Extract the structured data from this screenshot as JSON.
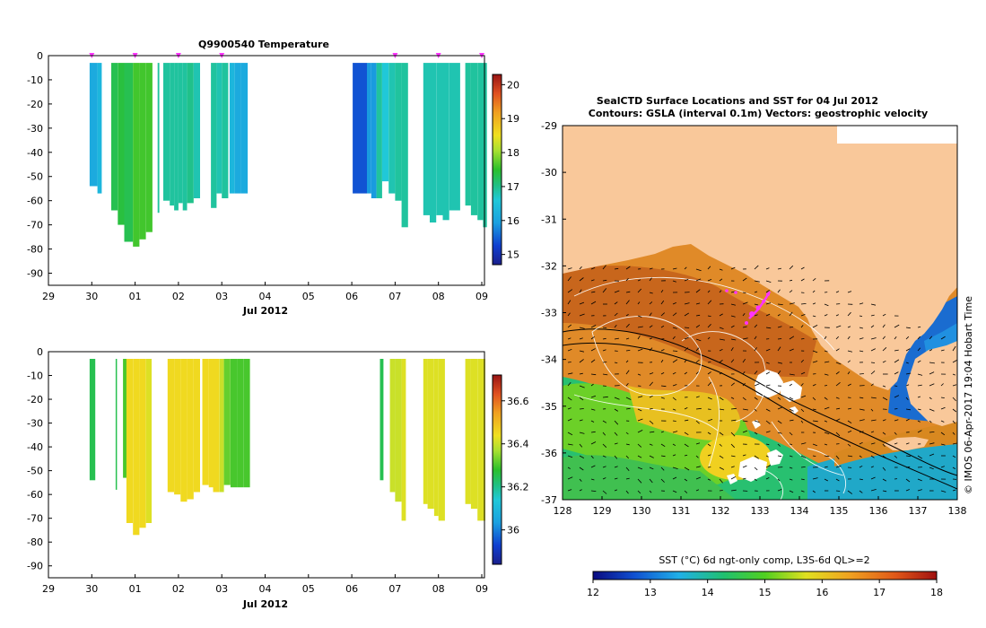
{
  "chart_data": [
    {
      "type": "heatmap",
      "title": "Q9900540  Temperature",
      "xlabel": "Jul 2012",
      "ylabel": "",
      "x_ticks": [
        "29",
        "30",
        "01",
        "02",
        "03",
        "04",
        "05",
        "06",
        "07",
        "08",
        "09"
      ],
      "y_ticks": [
        "0",
        "-10",
        "-20",
        "-30",
        "-40",
        "-50",
        "-60",
        "-70",
        "-80",
        "-90"
      ],
      "ylim": [
        -95,
        0
      ],
      "colorbar": {
        "min": 14.7,
        "max": 20.3,
        "ticks": [
          "15",
          "16",
          "17",
          "18",
          "19",
          "20"
        ]
      },
      "profiles": [
        {
          "start": 29.95,
          "end": 30.13,
          "depth": 54,
          "value": 16.1
        },
        {
          "start": 30.13,
          "end": 30.23,
          "depth": 57,
          "value": 16.3
        },
        {
          "start": 30.45,
          "end": 30.6,
          "depth": 64,
          "value": 17.3
        },
        {
          "start": 30.6,
          "end": 30.75,
          "depth": 70,
          "value": 17.4
        },
        {
          "start": 30.75,
          "end": 30.95,
          "depth": 77,
          "value": 17.3
        },
        {
          "start": 30.95,
          "end": 31.1,
          "depth": 79,
          "value": 17.6
        },
        {
          "start": 31.1,
          "end": 31.25,
          "depth": 76,
          "value": 17.6
        },
        {
          "start": 31.25,
          "end": 31.4,
          "depth": 73,
          "value": 17.6
        },
        {
          "start": 31.52,
          "end": 31.56,
          "depth": 65,
          "value": 16.9
        },
        {
          "start": 31.65,
          "end": 31.8,
          "depth": 60,
          "value": 16.9
        },
        {
          "start": 31.8,
          "end": 31.9,
          "depth": 62,
          "value": 16.9
        },
        {
          "start": 31.9,
          "end": 32.0,
          "depth": 64,
          "value": 16.9
        },
        {
          "start": 32.0,
          "end": 32.1,
          "depth": 61,
          "value": 16.9
        },
        {
          "start": 32.1,
          "end": 32.2,
          "depth": 64,
          "value": 16.9
        },
        {
          "start": 32.2,
          "end": 32.35,
          "depth": 61,
          "value": 17.0
        },
        {
          "start": 32.35,
          "end": 32.5,
          "depth": 59,
          "value": 16.8
        },
        {
          "start": 32.75,
          "end": 32.88,
          "depth": 63,
          "value": 16.9
        },
        {
          "start": 32.88,
          "end": 33.0,
          "depth": 57,
          "value": 16.8
        },
        {
          "start": 33.0,
          "end": 33.15,
          "depth": 59,
          "value": 16.9
        },
        {
          "start": 33.18,
          "end": 33.3,
          "depth": 57,
          "value": 16.3
        },
        {
          "start": 33.3,
          "end": 33.45,
          "depth": 57,
          "value": 16.1
        },
        {
          "start": 33.45,
          "end": 33.6,
          "depth": 57,
          "value": 16.1
        },
        {
          "start": 36.02,
          "end": 36.35,
          "depth": 57,
          "value": 15.4
        },
        {
          "start": 36.35,
          "end": 36.45,
          "depth": 57,
          "value": 15.9
        },
        {
          "start": 36.45,
          "end": 36.57,
          "depth": 59,
          "value": 15.9
        },
        {
          "start": 36.57,
          "end": 36.7,
          "depth": 59,
          "value": 16.9
        },
        {
          "start": 36.7,
          "end": 36.85,
          "depth": 52,
          "value": 16.6
        },
        {
          "start": 36.85,
          "end": 37.0,
          "depth": 57,
          "value": 16.8
        },
        {
          "start": 37.0,
          "end": 37.15,
          "depth": 60,
          "value": 16.9
        },
        {
          "start": 37.15,
          "end": 37.3,
          "depth": 71,
          "value": 16.9
        },
        {
          "start": 37.65,
          "end": 37.8,
          "depth": 66,
          "value": 16.8
        },
        {
          "start": 37.8,
          "end": 37.95,
          "depth": 69,
          "value": 16.8
        },
        {
          "start": 37.95,
          "end": 38.1,
          "depth": 66,
          "value": 16.8
        },
        {
          "start": 38.1,
          "end": 38.25,
          "depth": 68,
          "value": 16.8
        },
        {
          "start": 38.25,
          "end": 38.5,
          "depth": 64,
          "value": 16.8
        },
        {
          "start": 38.62,
          "end": 38.75,
          "depth": 62,
          "value": 16.9
        },
        {
          "start": 38.75,
          "end": 38.9,
          "depth": 66,
          "value": 16.9
        },
        {
          "start": 38.9,
          "end": 39.03,
          "depth": 68,
          "value": 16.9
        },
        {
          "start": 39.03,
          "end": 39.12,
          "depth": 71,
          "value": 16.9
        }
      ],
      "markers": [
        30.0,
        31.0,
        32.0,
        33.0,
        37.0,
        38.0,
        39.0
      ]
    },
    {
      "type": "heatmap",
      "title": "",
      "xlabel": "Jul 2012",
      "ylabel": "",
      "x_ticks": [
        "29",
        "30",
        "01",
        "02",
        "03",
        "04",
        "05",
        "06",
        "07",
        "08",
        "09"
      ],
      "y_ticks": [
        "0",
        "-10",
        "-20",
        "-30",
        "-40",
        "-50",
        "-60",
        "-70",
        "-80",
        "-90"
      ],
      "ylim": [
        -95,
        0
      ],
      "colorbar": {
        "min": 35.84,
        "max": 36.72,
        "ticks": [
          "36",
          "36.2",
          "36.4",
          "36.6"
        ]
      },
      "profiles": [
        {
          "start": 29.95,
          "end": 30.08,
          "depth": 54,
          "value": 36.25
        },
        {
          "start": 30.55,
          "end": 30.58,
          "depth": 58,
          "value": 36.25
        },
        {
          "start": 30.72,
          "end": 30.8,
          "depth": 53,
          "value": 36.3
        },
        {
          "start": 30.8,
          "end": 30.95,
          "depth": 72,
          "value": 36.45
        },
        {
          "start": 30.95,
          "end": 31.1,
          "depth": 77,
          "value": 36.45
        },
        {
          "start": 31.1,
          "end": 31.25,
          "depth": 74,
          "value": 36.45
        },
        {
          "start": 31.25,
          "end": 31.38,
          "depth": 72,
          "value": 36.42
        },
        {
          "start": 31.75,
          "end": 31.9,
          "depth": 59,
          "value": 36.45
        },
        {
          "start": 31.9,
          "end": 32.05,
          "depth": 60,
          "value": 36.45
        },
        {
          "start": 32.05,
          "end": 32.2,
          "depth": 63,
          "value": 36.45
        },
        {
          "start": 32.2,
          "end": 32.35,
          "depth": 62,
          "value": 36.45
        },
        {
          "start": 32.35,
          "end": 32.5,
          "depth": 59,
          "value": 36.45
        },
        {
          "start": 32.55,
          "end": 32.7,
          "depth": 56,
          "value": 36.45
        },
        {
          "start": 32.7,
          "end": 32.8,
          "depth": 57,
          "value": 36.45
        },
        {
          "start": 32.8,
          "end": 32.95,
          "depth": 59,
          "value": 36.45
        },
        {
          "start": 32.95,
          "end": 33.05,
          "depth": 59,
          "value": 36.4
        },
        {
          "start": 33.05,
          "end": 33.2,
          "depth": 56,
          "value": 36.32
        },
        {
          "start": 33.2,
          "end": 33.35,
          "depth": 57,
          "value": 36.3
        },
        {
          "start": 33.35,
          "end": 33.5,
          "depth": 57,
          "value": 36.3
        },
        {
          "start": 33.5,
          "end": 33.65,
          "depth": 57,
          "value": 36.3
        },
        {
          "start": 36.65,
          "end": 36.73,
          "depth": 54,
          "value": 36.25
        },
        {
          "start": 36.88,
          "end": 37.0,
          "depth": 59,
          "value": 36.4
        },
        {
          "start": 37.0,
          "end": 37.15,
          "depth": 63,
          "value": 36.4
        },
        {
          "start": 37.15,
          "end": 37.25,
          "depth": 71,
          "value": 36.42
        },
        {
          "start": 37.65,
          "end": 37.75,
          "depth": 64,
          "value": 36.42
        },
        {
          "start": 37.75,
          "end": 37.9,
          "depth": 66,
          "value": 36.42
        },
        {
          "start": 37.9,
          "end": 38.0,
          "depth": 69,
          "value": 36.42
        },
        {
          "start": 38.0,
          "end": 38.15,
          "depth": 71,
          "value": 36.42
        },
        {
          "start": 38.62,
          "end": 38.75,
          "depth": 64,
          "value": 36.42
        },
        {
          "start": 38.75,
          "end": 38.9,
          "depth": 66,
          "value": 36.42
        },
        {
          "start": 38.9,
          "end": 39.08,
          "depth": 71,
          "value": 36.42
        }
      ]
    },
    {
      "type": "heatmap",
      "title": "SealCTD Surface Locations and SST for 04 Jul 2012",
      "subtitle": "Contours: GSLA (interval 0.1m) Vectors: geostrophic velocity",
      "x_ticks": [
        "128",
        "129",
        "130",
        "131",
        "132",
        "133",
        "134",
        "135",
        "136",
        "137",
        "138"
      ],
      "y_ticks": [
        "-29",
        "-30",
        "-31",
        "-32",
        "-33",
        "-34",
        "-35",
        "-36",
        "-37"
      ],
      "xlim": [
        128,
        138
      ],
      "ylim": [
        -37,
        -29
      ],
      "colorbar_label": "SST (°C) 6d ngt-only comp, L3S-6d QL>=2",
      "colorbar": {
        "min": 12,
        "max": 18,
        "ticks": [
          "12",
          "13",
          "14",
          "15",
          "16",
          "17",
          "18"
        ]
      },
      "credit": "© IMOS 06-Apr-2017 19:04 Hobart Time"
    }
  ],
  "colors": {
    "land": "#f9c89a",
    "track": "#ff33ff"
  }
}
